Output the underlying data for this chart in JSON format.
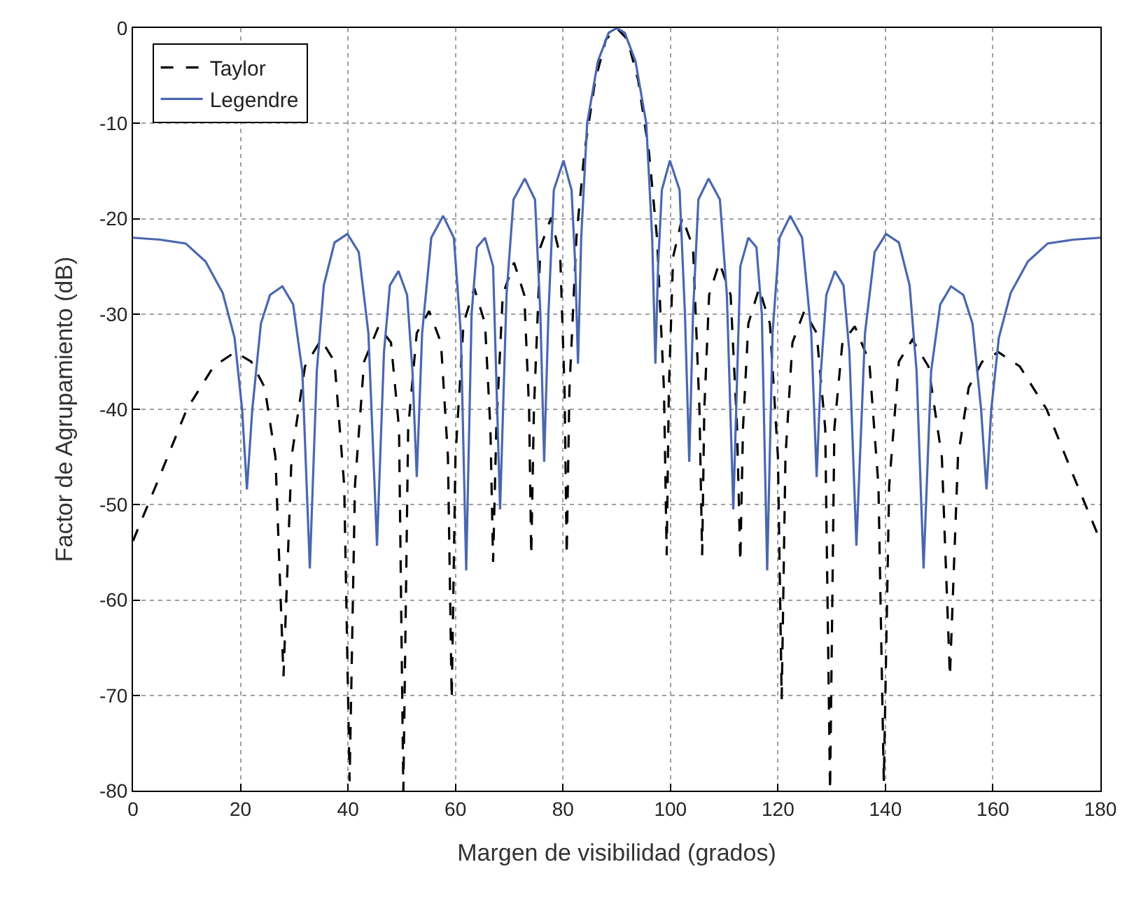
{
  "chart_data": {
    "type": "line",
    "xlabel": "Margen de visibilidad (grados)",
    "ylabel": "Factor de Agrupamiento (dB)",
    "xlim": [
      0,
      180
    ],
    "ylim": [
      -80,
      0
    ],
    "xticks": [
      0,
      20,
      40,
      60,
      80,
      100,
      120,
      140,
      160,
      180
    ],
    "yticks": [
      -80,
      -70,
      -60,
      -50,
      -40,
      -30,
      -20,
      -10,
      0
    ],
    "grid": true,
    "legend": "top left",
    "series": [
      {
        "name": "Taylor",
        "color": "#000000",
        "line_style": "dashed",
        "x": [
          0,
          5,
          10,
          15,
          19,
          22,
          24.5,
          26.5,
          28,
          29.5,
          32,
          35,
          37.5,
          39.3,
          40.3,
          41.3,
          43,
          45.7,
          48,
          49.5,
          50.3,
          51.2,
          52.8,
          55.1,
          57.3,
          58.6,
          59.3,
          60,
          61.5,
          63.5,
          65.5,
          66.5,
          67,
          67.6,
          68.8,
          70.9,
          72.8,
          73.7,
          74.1,
          74.6,
          75.8,
          77.8,
          79.5,
          80.3,
          80.7,
          81.2,
          82.5,
          84,
          86,
          88,
          90,
          92,
          94,
          96,
          97.5,
          98.8,
          99.3,
          99.7,
          100.5,
          102.2,
          104.2,
          105.4,
          105.9,
          106.3,
          107.2,
          109.1,
          111.2,
          112.4,
          113,
          113.5,
          114.5,
          116.5,
          118.5,
          120,
          120.7,
          121.4,
          122.7,
          124.9,
          127.2,
          128.8,
          129.7,
          130.5,
          132,
          134.3,
          137,
          138.7,
          139.7,
          140.7,
          142.5,
          145,
          148,
          150.5,
          152,
          153.5,
          155.5,
          158,
          161,
          165,
          170,
          175,
          180
        ],
        "values": [
          -53.8,
          -47,
          -40,
          -35.5,
          -34,
          -35,
          -37.7,
          -45,
          -68,
          -45,
          -35.5,
          -32.7,
          -35,
          -48,
          -79,
          -48,
          -35,
          -31.3,
          -33,
          -42,
          -80,
          -42,
          -32,
          -29.7,
          -33,
          -45,
          -70.4,
          -45,
          -31,
          -27.3,
          -31,
          -42,
          -56,
          -42,
          -28,
          -24.6,
          -28,
          -40,
          -55.3,
          -40,
          -23,
          -19.9,
          -24,
          -38,
          -55.3,
          -38,
          -22,
          -13,
          -5.5,
          -1.2,
          0,
          -1.2,
          -5.5,
          -13,
          -22,
          -38,
          -55.3,
          -38,
          -24,
          -19.9,
          -23,
          -40,
          -55.3,
          -40,
          -28,
          -24.6,
          -28,
          -42,
          -56,
          -42,
          -31,
          -27.3,
          -31,
          -45,
          -70.4,
          -45,
          -33,
          -29.7,
          -32,
          -42,
          -80,
          -42,
          -33,
          -31.3,
          -35,
          -48,
          -79,
          -48,
          -35,
          -32.7,
          -35.5,
          -45,
          -68,
          -45,
          -37.7,
          -35,
          -34,
          -35.5,
          -40,
          -47,
          -53.8
        ]
      },
      {
        "name": "Legendre",
        "color": "#4a67b0",
        "line_style": "solid",
        "x": [
          0,
          5,
          9.8,
          13.5,
          16.7,
          18.9,
          20.3,
          21.2,
          22.2,
          23.8,
          25.5,
          27.8,
          29.8,
          31.5,
          32.9,
          34.2,
          35.5,
          37.5,
          39.9,
          42,
          43.8,
          45.4,
          46.7,
          47.8,
          49.4,
          51,
          52,
          52.8,
          53.8,
          55.5,
          57.7,
          59.7,
          61,
          62,
          63,
          64,
          65.5,
          67,
          68.3,
          69.5,
          70.8,
          72.9,
          74.8,
          75.8,
          76.5,
          77.3,
          78.3,
          80.1,
          81.6,
          82.3,
          82.8,
          83.4,
          84.5,
          86.5,
          88.5,
          90,
          91.5,
          93.5,
          95.5,
          96.6,
          97.2,
          97.7,
          98.4,
          99.9,
          101.7,
          102.7,
          103.5,
          104.2,
          105.2,
          107.1,
          109.2,
          110.5,
          111.7,
          113,
          114.5,
          116,
          117,
          118,
          119,
          120.3,
          122.3,
          124.5,
          126.2,
          127.2,
          128,
          129,
          130.6,
          132.2,
          133.3,
          134.6,
          136.2,
          138,
          140.1,
          142.5,
          144.5,
          145.8,
          147.1,
          148.5,
          150.2,
          152.2,
          154.5,
          156.2,
          157.8,
          158.8,
          159.7,
          161.1,
          163.3,
          166.5,
          170.2,
          175,
          180
        ],
        "values": [
          -22,
          -22.2,
          -22.6,
          -24.5,
          -27.8,
          -32.5,
          -40,
          -48.4,
          -40,
          -31,
          -28,
          -27.1,
          -29,
          -36,
          -56.7,
          -36,
          -27,
          -22.5,
          -21.6,
          -23.5,
          -32,
          -54.3,
          -34,
          -27,
          -25.5,
          -28,
          -36,
          -47.1,
          -32,
          -22,
          -19.7,
          -22,
          -32,
          -56.9,
          -30,
          -23,
          -22,
          -25,
          -50.5,
          -28,
          -18,
          -15.8,
          -18,
          -30,
          -45.5,
          -30,
          -17,
          -13.9,
          -17,
          -25,
          -35.2,
          -22,
          -10,
          -3.5,
          -0.5,
          0,
          -0.5,
          -3.5,
          -10,
          -22,
          -35.2,
          -25,
          -17,
          -13.9,
          -17,
          -30,
          -45.5,
          -30,
          -18,
          -15.8,
          -18,
          -28,
          -50.5,
          -25,
          -22,
          -23,
          -30,
          -56.9,
          -32,
          -22,
          -19.7,
          -22,
          -32,
          -47.1,
          -36,
          -28,
          -25.5,
          -27,
          -34,
          -54.3,
          -32,
          -23.5,
          -21.6,
          -22.5,
          -27,
          -36,
          -56.7,
          -36,
          -29,
          -27.1,
          -28,
          -31,
          -40,
          -48.4,
          -40,
          -32.5,
          -27.8,
          -24.5,
          -22.6,
          -22.2,
          -22
        ]
      }
    ]
  }
}
